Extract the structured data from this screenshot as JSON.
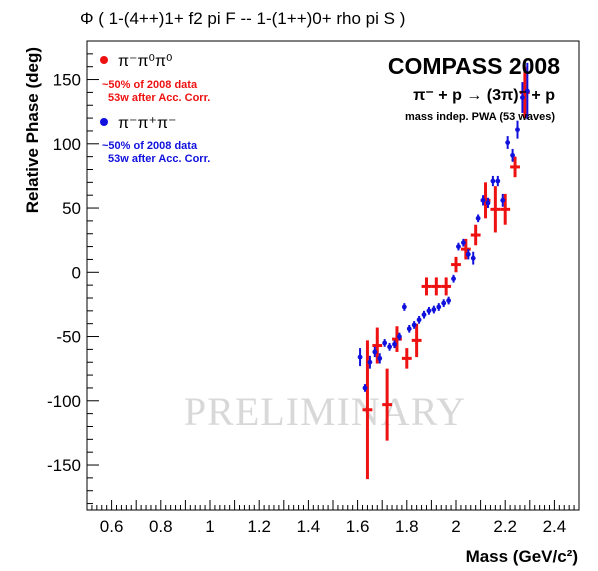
{
  "chart_data": {
    "type": "scatter",
    "title": "Φ ( 1-(4++)1+ f2 pi F  --  1-(1++)0+ rho pi S )",
    "xlabel": "Mass (GeV/c²)",
    "ylabel": "Relative Phase (deg)",
    "xlim": [
      0.5,
      2.5
    ],
    "ylim": [
      -185,
      180
    ],
    "x_ticks": [
      {
        "value": 0.6,
        "label": "0.6"
      },
      {
        "value": 0.8,
        "label": "0.8"
      },
      {
        "value": 1.0,
        "label": "1"
      },
      {
        "value": 1.2,
        "label": "1.2"
      },
      {
        "value": 1.4,
        "label": "1.4"
      },
      {
        "value": 1.6,
        "label": "1.6"
      },
      {
        "value": 1.8,
        "label": "1.8"
      },
      {
        "value": 2.0,
        "label": "2"
      },
      {
        "value": 2.2,
        "label": "2.2"
      },
      {
        "value": 2.4,
        "label": "2.4"
      }
    ],
    "y_ticks": [
      {
        "value": -150,
        "label": "-150"
      },
      {
        "value": -100,
        "label": "-100"
      },
      {
        "value": -50,
        "label": "-50"
      },
      {
        "value": 0,
        "label": "0"
      },
      {
        "value": 50,
        "label": "50"
      },
      {
        "value": 100,
        "label": "100"
      },
      {
        "value": 150,
        "label": "150"
      }
    ],
    "grid": false,
    "legend_position": "top-left",
    "annotations": {
      "experiment": "COMPASS 2008",
      "reaction": "π⁻ + p  →  (3π)⁻ + p",
      "analysis": "mass indep. PWA (53 waves)",
      "watermark": "PRELIMINARY"
    },
    "series": [
      {
        "name": "π⁻π⁰π⁰",
        "note_line1": "~50% of 2008 data",
        "note_line2": "53w after Acc. Corr.",
        "color": "#ee1111",
        "x_half_width": 0.02,
        "points": [
          {
            "x": 1.64,
            "y": -107,
            "err": 54
          },
          {
            "x": 1.68,
            "y": -57,
            "err": 14
          },
          {
            "x": 1.72,
            "y": -103,
            "err": 28
          },
          {
            "x": 1.76,
            "y": -52,
            "err": 10
          },
          {
            "x": 1.8,
            "y": -67,
            "err": 8
          },
          {
            "x": 1.84,
            "y": -53,
            "err": 13
          },
          {
            "x": 1.88,
            "y": -11,
            "err": 7
          },
          {
            "x": 1.92,
            "y": -11,
            "err": 7
          },
          {
            "x": 1.96,
            "y": -11,
            "err": 7
          },
          {
            "x": 2.0,
            "y": 6,
            "err": 6
          },
          {
            "x": 2.04,
            "y": 18,
            "err": 8
          },
          {
            "x": 2.08,
            "y": 29,
            "err": 8
          },
          {
            "x": 2.12,
            "y": 56,
            "err": 14
          },
          {
            "x": 2.16,
            "y": 49,
            "err": 18
          },
          {
            "x": 2.2,
            "y": 49,
            "err": 12
          },
          {
            "x": 2.24,
            "y": 82,
            "err": 8
          },
          {
            "x": 2.28,
            "y": 140,
            "err": 20
          }
        ]
      },
      {
        "name": "π⁻π⁺π⁻",
        "note_line1": "~50% of 2008 data",
        "note_line2": "53w after Acc. Corr.",
        "color": "#1111dd",
        "x_half_width": 0.008,
        "points": [
          {
            "x": 1.61,
            "y": -66,
            "err": 7
          },
          {
            "x": 1.63,
            "y": -90,
            "err": 3
          },
          {
            "x": 1.65,
            "y": -70,
            "err": 5
          },
          {
            "x": 1.67,
            "y": -62,
            "err": 4
          },
          {
            "x": 1.69,
            "y": -67,
            "err": 4
          },
          {
            "x": 1.71,
            "y": -55,
            "err": 3
          },
          {
            "x": 1.73,
            "y": -58,
            "err": 3
          },
          {
            "x": 1.75,
            "y": -56,
            "err": 3
          },
          {
            "x": 1.77,
            "y": -50,
            "err": 3
          },
          {
            "x": 1.79,
            "y": -27,
            "err": 3
          },
          {
            "x": 1.81,
            "y": -44,
            "err": 3
          },
          {
            "x": 1.83,
            "y": -41,
            "err": 3
          },
          {
            "x": 1.85,
            "y": -37,
            "err": 3
          },
          {
            "x": 1.87,
            "y": -33,
            "err": 3
          },
          {
            "x": 1.89,
            "y": -30,
            "err": 3
          },
          {
            "x": 1.91,
            "y": -29,
            "err": 3
          },
          {
            "x": 1.93,
            "y": -27,
            "err": 3
          },
          {
            "x": 1.95,
            "y": -24,
            "err": 3
          },
          {
            "x": 1.97,
            "y": -22,
            "err": 3
          },
          {
            "x": 1.99,
            "y": -5,
            "err": 3
          },
          {
            "x": 2.01,
            "y": 20,
            "err": 3
          },
          {
            "x": 2.03,
            "y": 23,
            "err": 3
          },
          {
            "x": 2.05,
            "y": 14,
            "err": 4
          },
          {
            "x": 2.07,
            "y": 11,
            "err": 5
          },
          {
            "x": 2.09,
            "y": 42,
            "err": 3
          },
          {
            "x": 2.11,
            "y": 56,
            "err": 4
          },
          {
            "x": 2.13,
            "y": 54,
            "err": 4
          },
          {
            "x": 2.15,
            "y": 71,
            "err": 4
          },
          {
            "x": 2.17,
            "y": 71,
            "err": 4
          },
          {
            "x": 2.19,
            "y": 56,
            "err": 5
          },
          {
            "x": 2.21,
            "y": 101,
            "err": 5
          },
          {
            "x": 2.23,
            "y": 91,
            "err": 5
          },
          {
            "x": 2.25,
            "y": 111,
            "err": 7
          },
          {
            "x": 2.27,
            "y": 136,
            "err": 12
          },
          {
            "x": 2.29,
            "y": 141,
            "err": 22
          }
        ]
      }
    ]
  }
}
